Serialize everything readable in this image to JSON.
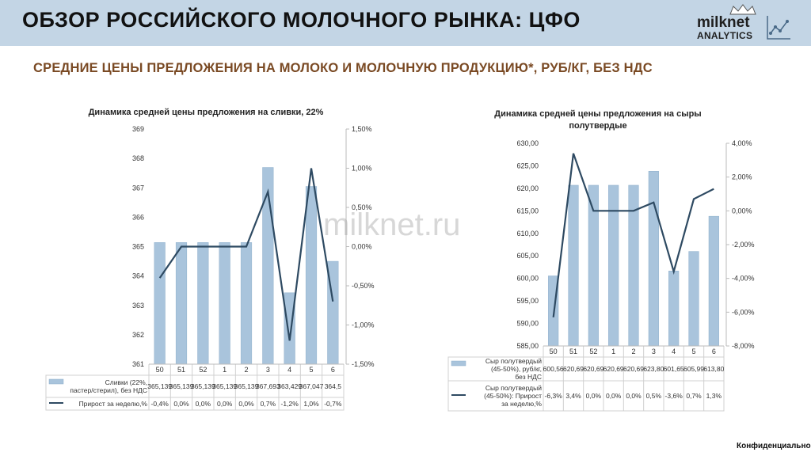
{
  "header": {
    "title": "ОБЗОР РОССИЙСКОГО МОЛОЧНОГО РЫНКА: ЦФО",
    "logo_name": "milknet",
    "logo_sub": "ANALYTICS",
    "accent_color": "#c3d5e5"
  },
  "subtitle": "СРЕДНИЕ ЦЕНЫ ПРЕДЛОЖЕНИЯ НА МОЛОКО И МОЛОЧНУЮ ПРОДУКЦИЮ*, РУБ/КГ, БЕЗ НДС",
  "watermark": "milknet.ru",
  "footer": {
    "confidential": "Конфиденциально"
  },
  "chart_data": [
    {
      "type": "bar",
      "title": "Динамика средней цены предложения на сливки, 22%",
      "categories": [
        "50",
        "51",
        "52",
        "1",
        "2",
        "3",
        "4",
        "5",
        "6"
      ],
      "series": [
        {
          "name": "Сливки (22%, пастер/стерил), без НДС",
          "type": "bar",
          "axis": "left",
          "values": [
            365.139,
            365.139,
            365.139,
            365.139,
            365.139,
            367.693,
            363.429,
            367.047,
            364.5
          ],
          "labels": [
            "365,139",
            "365,139",
            "365,139",
            "365,139",
            "365,139",
            "367,693",
            "363,429",
            "367,047",
            "364,5"
          ]
        },
        {
          "name": "Прирост за неделю,%",
          "type": "line",
          "axis": "right",
          "values": [
            -0.4,
            0.0,
            0.0,
            0.0,
            0.0,
            0.7,
            -1.2,
            1.0,
            -0.7
          ],
          "labels": [
            "-0,4%",
            "0,0%",
            "0,0%",
            "0,0%",
            "0,0%",
            "0,7%",
            "-1,2%",
            "1,0%",
            "-0,7%"
          ]
        }
      ],
      "y_left": {
        "min": 361,
        "max": 369,
        "ticks": [
          "361",
          "362",
          "363",
          "364",
          "365",
          "366",
          "367",
          "368",
          "369"
        ]
      },
      "y_right": {
        "min": -1.5,
        "max": 1.5,
        "ticks": [
          "-1,50%",
          "-1,00%",
          "-0,50%",
          "0,00%",
          "0,50%",
          "1,00%",
          "1,50%"
        ]
      },
      "bar_color": "#a9c4dc",
      "line_color": "#2e4a62",
      "legend_position": "bottom-table"
    },
    {
      "type": "bar",
      "title": "Динамика средней цены предложения на сыры полутвердые",
      "categories": [
        "50",
        "51",
        "52",
        "1",
        "2",
        "3",
        "4",
        "5",
        "6"
      ],
      "series": [
        {
          "name": "Сыр полутвердый (45-50%), руб/кг, без НДС",
          "type": "bar",
          "axis": "left",
          "values": [
            600.56,
            620.69,
            620.69,
            620.69,
            620.69,
            623.8,
            601.65,
            605.99,
            613.8
          ],
          "labels": [
            "600,56",
            "620,69",
            "620,69",
            "620,69",
            "620,69",
            "623,80",
            "601,65",
            "605,99",
            "613,80"
          ]
        },
        {
          "name": "Сыр полутвердый (45-50%): Прирост за неделю,%",
          "type": "line",
          "axis": "right",
          "values": [
            -6.3,
            3.4,
            0.0,
            0.0,
            0.0,
            0.5,
            -3.6,
            0.7,
            1.3
          ],
          "labels": [
            "-6,3%",
            "3,4%",
            "0,0%",
            "0,0%",
            "0,0%",
            "0,5%",
            "-3,6%",
            "0,7%",
            "1,3%"
          ]
        }
      ],
      "y_left": {
        "min": 585,
        "max": 630,
        "ticks": [
          "585,00",
          "590,00",
          "595,00",
          "600,00",
          "605,00",
          "610,00",
          "615,00",
          "620,00",
          "625,00",
          "630,00"
        ]
      },
      "y_right": {
        "min": -8,
        "max": 4,
        "ticks": [
          "-8,00%",
          "-6,00%",
          "-4,00%",
          "-2,00%",
          "0,00%",
          "2,00%",
          "4,00%"
        ]
      },
      "bar_color": "#a9c4dc",
      "line_color": "#2e4a62",
      "legend_position": "bottom-table"
    }
  ]
}
